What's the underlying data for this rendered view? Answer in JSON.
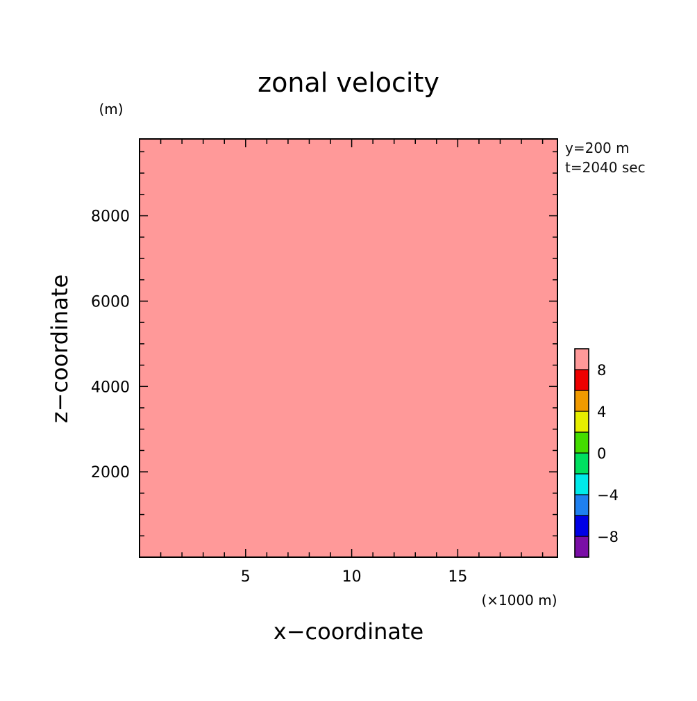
{
  "chart_data": {
    "type": "heatmap",
    "title": "zonal velocity",
    "xlabel": "x−coordinate",
    "ylabel": "z−coordinate",
    "x_unit": "(×1000 m)",
    "y_unit": "(m)",
    "xlim": [
      0,
      19.7
    ],
    "ylim": [
      0,
      9800
    ],
    "x_tick_values": [
      5,
      10,
      15
    ],
    "x_tick_labels": [
      "5",
      "10",
      "15"
    ],
    "y_tick_values": [
      2000,
      4000,
      6000,
      8000
    ],
    "y_tick_labels": [
      "2000",
      "4000",
      "6000",
      "8000"
    ],
    "annotations": [
      "y=200 m",
      "t=2040 sec"
    ],
    "field_value": 10,
    "field_color": "#ff9999",
    "colorbar": {
      "range": [
        -10,
        10
      ],
      "levels": [
        -10,
        -8,
        -6,
        -4,
        -2,
        0,
        2,
        4,
        6,
        8,
        10
      ],
      "colors": [
        "#7a0ea6",
        "#0000e6",
        "#1f80f0",
        "#00eaea",
        "#00e060",
        "#44dd00",
        "#e6ee00",
        "#f09a00",
        "#ee0000",
        "#ff9999"
      ],
      "tick_values": [
        -8,
        -4,
        0,
        4,
        8
      ],
      "tick_labels": [
        "−8",
        "−4",
        "0",
        "4",
        "8"
      ]
    }
  }
}
